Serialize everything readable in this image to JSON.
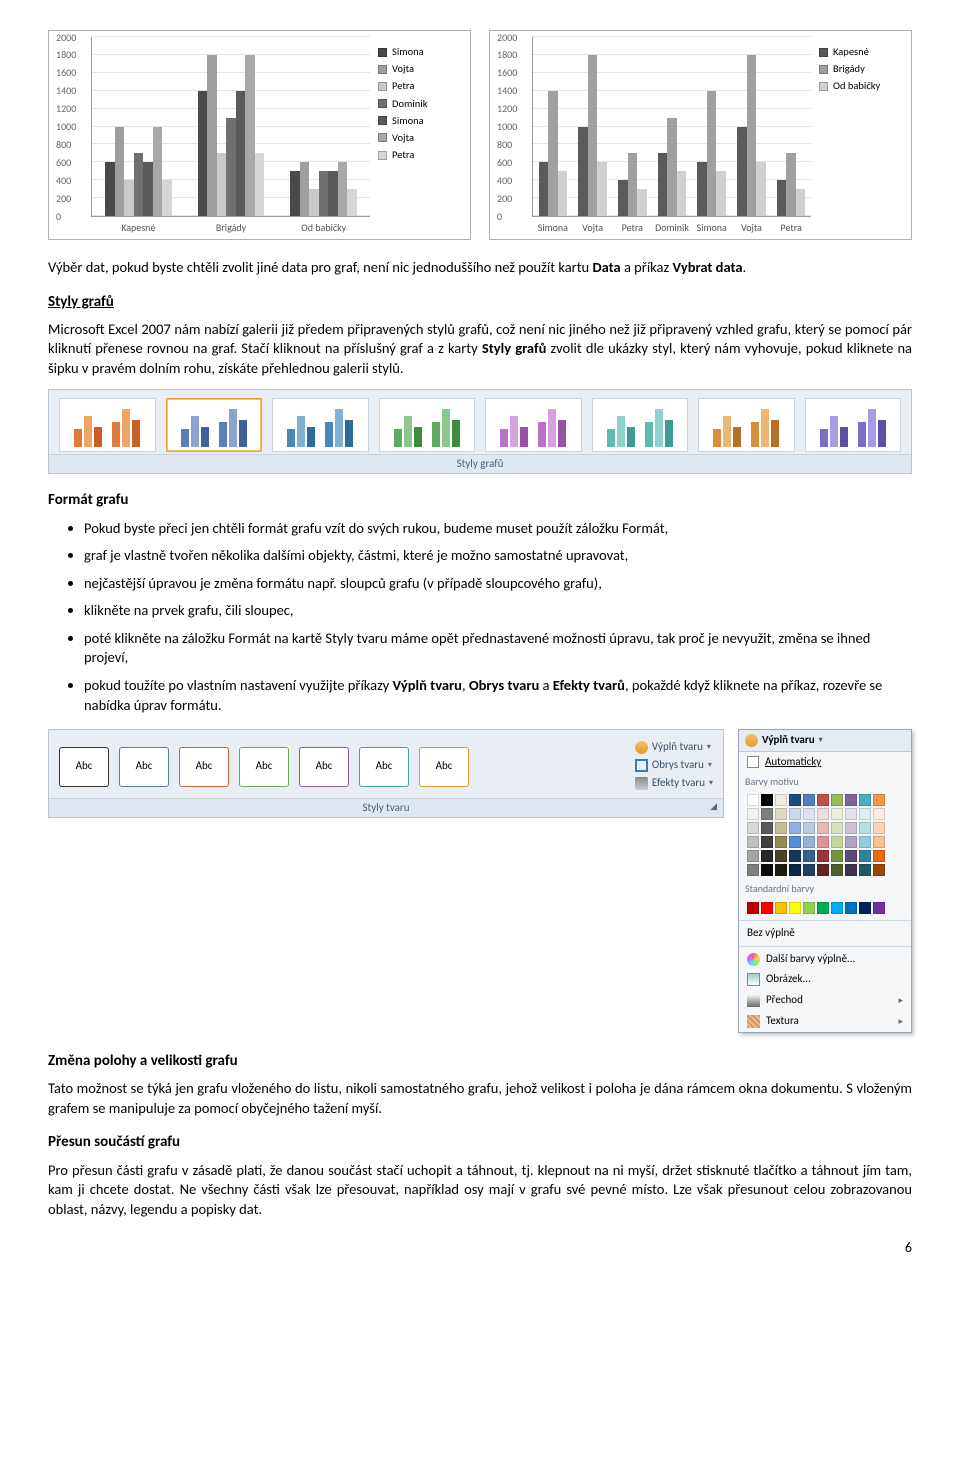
{
  "chart1": {
    "ymax": 2000,
    "ytick": 200,
    "ylabels": [
      "0",
      "200",
      "400",
      "600",
      "800",
      "1000",
      "1200",
      "1400",
      "1600",
      "1800",
      "2000"
    ],
    "categories": [
      "Kapesné",
      "Brigády",
      "Od babičky"
    ],
    "series": [
      {
        "name": "Simona",
        "color": "#4a4a4a",
        "values": [
          600,
          1400,
          500
        ]
      },
      {
        "name": "Vojta",
        "color": "#9e9e9e",
        "values": [
          1000,
          1800,
          600
        ]
      },
      {
        "name": "Petra",
        "color": "#c9c9c9",
        "values": [
          400,
          700,
          300
        ]
      },
      {
        "name": "Dominik",
        "color": "#707070",
        "values": [
          700,
          1100,
          500
        ]
      },
      {
        "name": "Simona",
        "color": "#5a5a5a",
        "values": [
          600,
          1400,
          500
        ]
      },
      {
        "name": "Vojta",
        "color": "#a8a8a8",
        "values": [
          1000,
          1800,
          600
        ]
      },
      {
        "name": "Petra",
        "color": "#d6d6d6",
        "values": [
          400,
          700,
          300
        ]
      }
    ]
  },
  "chart2": {
    "ymax": 2000,
    "ytick": 200,
    "ylabels": [
      "0",
      "200",
      "400",
      "600",
      "800",
      "1000",
      "1200",
      "1400",
      "1600",
      "1800",
      "2000"
    ],
    "categories": [
      "Simona",
      "Vojta",
      "Petra",
      "Dominik",
      "Simona",
      "Vojta",
      "Petra"
    ],
    "series": [
      {
        "name": "Kapesné",
        "color": "#5a5a5a",
        "values": [
          600,
          1000,
          400,
          700,
          600,
          1000,
          400
        ]
      },
      {
        "name": "Brigády",
        "color": "#a0a0a0",
        "values": [
          1400,
          1800,
          700,
          1100,
          1400,
          1800,
          700
        ]
      },
      {
        "name": "Od babičky",
        "color": "#d0d0d0",
        "values": [
          500,
          600,
          300,
          500,
          500,
          600,
          300
        ]
      }
    ]
  },
  "text": {
    "p1a": "Výběr dat, pokud byste chtěli zvolit jiné data pro graf, není nic jednoduššího než použít kartu ",
    "p1b": "Data",
    "p1c": " a příkaz ",
    "p1d": "Vybrat data",
    "p1e": ".",
    "h_styly": "Styly grafů",
    "p2a": "Microsoft Excel 2007 nám nabízí galerii již předem připravených stylů grafů, což není nic jiného než již připravený vzhled grafu, který se pomocí pár kliknutí přenese rovnou na graf. Stačí kliknout na příslušný graf a z karty ",
    "p2b": "Styly grafů",
    "p2c": " zvolit dle ukázky styl, který nám vyhovuje, pokud kliknete na šipku v pravém dolním rohu, získáte přehlednou galerii stylů.",
    "ribbon_styles_caption": "Styly grafů",
    "h_format": "Formát grafu",
    "li1": "Pokud byste přeci jen chtěli formát grafu vzít do svých rukou, budeme muset použít záložku Formát,",
    "li2": "graf je vlastně tvořen několika dalšími objekty, částmi, které je možno samostatné upravovat,",
    "li3": "nejčastější úpravou je změna formátu např. sloupců grafu (v případě sloupcového grafu),",
    "li4": "klikněte na prvek grafu, čili sloupec,",
    "li5": "poté klikněte na záložku Formát na kartě Styly tvaru máme opět přednastavené možnosti úpravu, tak proč je nevyužit, změna se ihned projeví,",
    "li6a": "pokud toužíte po vlastním nastavení využijte příkazy ",
    "li6b": "Výplň tvaru",
    "li6c": ", ",
    "li6d": "Obrys tvaru",
    "li6e": " a ",
    "li6f": "Efekty tvarů",
    "li6g": ", pokaždé když kliknete na příkaz, rozevře se nabídka úprav formátu.",
    "abc": "Abc",
    "vypl": "Výplň tvaru",
    "obrys": "Obrys tvaru",
    "efekty": "Efekty tvaru",
    "styly_tvaru": "Styly tvaru",
    "cm_title": "Výplň tvaru",
    "cm_auto": "Automaticky",
    "cm_motiv": "Barvy motivu",
    "cm_std": "Standardní barvy",
    "cm_bez": "Bez výplně",
    "cm_dalsi": "Další barvy výplně...",
    "cm_obr": "Obrázek...",
    "cm_prechod": "Přechod",
    "cm_textura": "Textura",
    "h_zmena": "Změna polohy a velikosti grafu",
    "p3": "Tato možnost se týká jen grafu vloženého do listu, nikoli samostatného grafu, jehož velikost i poloha je dána rámcem okna dokumentu. S vloženým grafem se manipuluje za pomocí obyčejného tažení myší.",
    "h_presun": "Přesun součástí grafu",
    "p4": "Pro přesun části grafu v zásadě platí, že danou součást stačí uchopit a táhnout, tj. klepnout na ni myší, držet stisknuté tlačítko a táhnout jím tam, kam ji chcete dostat. Ne všechny části však lze přesouvat, například osy mají v grafu své pevné místo. Lze však přesunout celou zobrazovanou oblast, názvy, legendu a popisky dat.",
    "page": "6"
  },
  "style_thumbs": [
    {
      "colors": [
        "#e07b3a",
        "#f0a466",
        "#c86028"
      ]
    },
    {
      "colors": [
        "#5a7fb8",
        "#8aa4cf",
        "#3f6399"
      ]
    },
    {
      "colors": [
        "#4a86b8",
        "#7fb1d6",
        "#2f6a9c"
      ]
    },
    {
      "colors": [
        "#5fab5f",
        "#8cc88c",
        "#3f8c3f"
      ]
    },
    {
      "colors": [
        "#b873c4",
        "#d4a3dd",
        "#9852a5"
      ]
    },
    {
      "colors": [
        "#5fbab0",
        "#8fd4cc",
        "#3f9c93"
      ]
    },
    {
      "colors": [
        "#d88f3a",
        "#edb675",
        "#b87024"
      ]
    },
    {
      "colors": [
        "#7b6fc4",
        "#a69de0",
        "#5d51a5"
      ]
    }
  ],
  "abc_colors": [
    "#333333",
    "#5b7ba8",
    "#c46a3a",
    "#6fa84f",
    "#8a5ca8",
    "#4aa0a0",
    "#d89a3a"
  ],
  "motiv_colors": [
    [
      "#ffffff",
      "#000000",
      "#eeece1",
      "#1f497d",
      "#4f81bd",
      "#c0504d",
      "#9bbb59",
      "#8064a2",
      "#4bacc6",
      "#f79646"
    ],
    [
      "#f2f2f2",
      "#7f7f7f",
      "#ddd9c3",
      "#c6d9f0",
      "#dbe5f1",
      "#f2dcdb",
      "#ebf1dd",
      "#e5e0ec",
      "#dbeef3",
      "#fdeada"
    ],
    [
      "#d8d8d8",
      "#595959",
      "#c4bd97",
      "#8db3e2",
      "#b8cce4",
      "#e5b9b7",
      "#d7e3bc",
      "#ccc1d9",
      "#b7dde8",
      "#fbd5b5"
    ],
    [
      "#bfbfbf",
      "#3f3f3f",
      "#938953",
      "#548dd4",
      "#95b3d7",
      "#d99694",
      "#c3d69b",
      "#b2a2c7",
      "#92cddc",
      "#fac08f"
    ],
    [
      "#a5a5a5",
      "#262626",
      "#494429",
      "#17365d",
      "#366092",
      "#953734",
      "#76923c",
      "#5f497a",
      "#31859b",
      "#e36c09"
    ],
    [
      "#7f7f7f",
      "#0c0c0c",
      "#1d1b10",
      "#0f243e",
      "#244061",
      "#632423",
      "#4f6128",
      "#3f3151",
      "#205867",
      "#974806"
    ]
  ],
  "std_colors": [
    "#c00000",
    "#ff0000",
    "#ffc000",
    "#ffff00",
    "#92d050",
    "#00b050",
    "#00b0f0",
    "#0070c0",
    "#002060",
    "#7030a0"
  ]
}
